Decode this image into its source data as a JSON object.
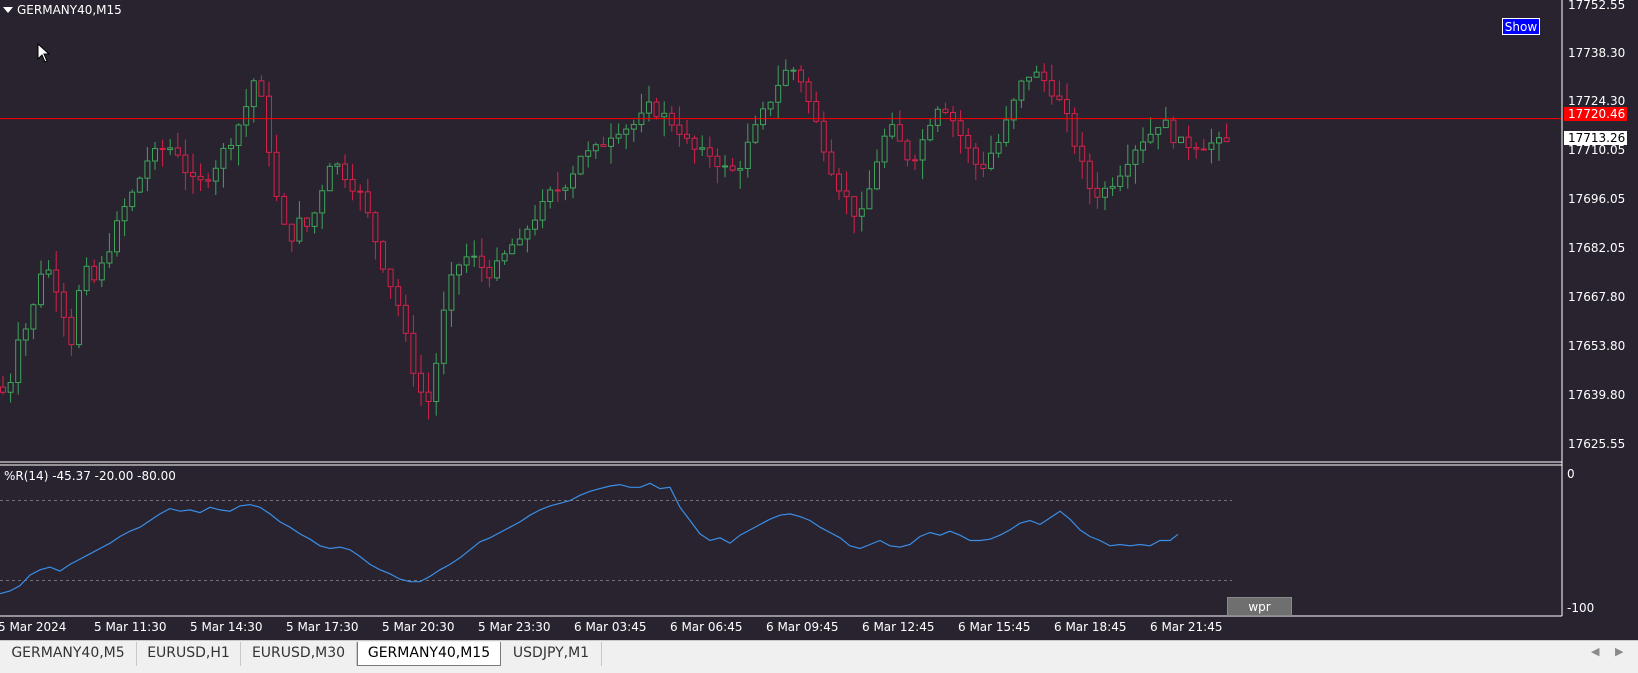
{
  "chart_window": {
    "title": "GERMANY40,M15",
    "show_button": "Show"
  },
  "price_axis": {
    "ticks": [
      "17752.55",
      "17738.30",
      "17724.30",
      "17710.05",
      "17696.05",
      "17682.05",
      "17667.80",
      "17653.80",
      "17639.80",
      "17625.55"
    ],
    "bid_tag": "17720.46",
    "last_tag": "17713.26"
  },
  "indicator": {
    "label": "%R(14) -45.37 -20.00 -80.00",
    "level_top": "0",
    "level_bottom": "-100",
    "button": "wpr"
  },
  "time_axis": {
    "ticks": [
      "5 Mar 2024",
      "5 Mar 11:30",
      "5 Mar 14:30",
      "5 Mar 17:30",
      "5 Mar 20:30",
      "5 Mar 23:30",
      "6 Mar 03:45",
      "6 Mar 06:45",
      "6 Mar 09:45",
      "6 Mar 12:45",
      "6 Mar 15:45",
      "6 Mar 18:45",
      "6 Mar 21:45"
    ]
  },
  "tabs": [
    {
      "label": "GERMANY40,M5",
      "active": false
    },
    {
      "label": "EURUSD,H1",
      "active": false
    },
    {
      "label": "EURUSD,M30",
      "active": false
    },
    {
      "label": "GERMANY40,M15",
      "active": true
    },
    {
      "label": "USDJPY,M1",
      "active": false
    }
  ],
  "colors": {
    "background": "#28232f",
    "bull": "#3fa35a",
    "bear": "#d6214a",
    "bid_line": "#ff0000",
    "wpr_line": "#3a8ee6"
  },
  "chart_data": {
    "type": "candlestick",
    "price_range": [
      17620,
      17755
    ],
    "bid": 17720.46,
    "last": 17713.26,
    "close_path": [
      [
        0,
        17641
      ],
      [
        6,
        17638
      ],
      [
        12,
        17645
      ],
      [
        20,
        17660
      ],
      [
        28,
        17658
      ],
      [
        36,
        17668
      ],
      [
        44,
        17680
      ],
      [
        52,
        17672
      ],
      [
        60,
        17670
      ],
      [
        70,
        17652
      ],
      [
        78,
        17668
      ],
      [
        86,
        17675
      ],
      [
        96,
        17672
      ],
      [
        106,
        17680
      ],
      [
        116,
        17688
      ],
      [
        126,
        17695
      ],
      [
        136,
        17700
      ],
      [
        146,
        17708
      ],
      [
        156,
        17710
      ],
      [
        166,
        17712
      ],
      [
        176,
        17712
      ],
      [
        186,
        17705
      ],
      [
        196,
        17700
      ],
      [
        206,
        17703
      ],
      [
        216,
        17707
      ],
      [
        226,
        17712
      ],
      [
        236,
        17717
      ],
      [
        246,
        17724
      ],
      [
        254,
        17732
      ],
      [
        262,
        17725
      ],
      [
        270,
        17710
      ],
      [
        280,
        17690
      ],
      [
        290,
        17685
      ],
      [
        300,
        17690
      ],
      [
        310,
        17688
      ],
      [
        320,
        17698
      ],
      [
        330,
        17708
      ],
      [
        340,
        17706
      ],
      [
        350,
        17702
      ],
      [
        360,
        17698
      ],
      [
        370,
        17690
      ],
      [
        380,
        17680
      ],
      [
        390,
        17672
      ],
      [
        400,
        17664
      ],
      [
        406,
        17655
      ],
      [
        412,
        17648
      ],
      [
        420,
        17640
      ],
      [
        428,
        17636
      ],
      [
        436,
        17648
      ],
      [
        444,
        17663
      ],
      [
        452,
        17673
      ],
      [
        460,
        17678
      ],
      [
        470,
        17680
      ],
      [
        480,
        17677
      ],
      [
        490,
        17675
      ],
      [
        500,
        17677
      ],
      [
        510,
        17683
      ],
      [
        520,
        17683
      ],
      [
        530,
        17690
      ],
      [
        540,
        17693
      ],
      [
        550,
        17698
      ],
      [
        560,
        17700
      ],
      [
        570,
        17703
      ],
      [
        580,
        17710
      ],
      [
        590,
        17710
      ],
      [
        600,
        17712
      ],
      [
        610,
        17716
      ],
      [
        620,
        17718
      ],
      [
        630,
        17718
      ],
      [
        640,
        17720
      ],
      [
        650,
        17724
      ],
      [
        660,
        17722
      ],
      [
        670,
        17720
      ],
      [
        680,
        17717
      ],
      [
        690,
        17712
      ],
      [
        700,
        17710
      ],
      [
        710,
        17710
      ],
      [
        720,
        17707
      ],
      [
        730,
        17704
      ],
      [
        740,
        17707
      ],
      [
        750,
        17714
      ],
      [
        760,
        17720
      ],
      [
        770,
        17726
      ],
      [
        780,
        17732
      ],
      [
        790,
        17736
      ],
      [
        800,
        17733
      ],
      [
        810,
        17724
      ],
      [
        820,
        17716
      ],
      [
        830,
        17707
      ],
      [
        840,
        17700
      ],
      [
        850,
        17695
      ],
      [
        860,
        17690
      ],
      [
        870,
        17700
      ],
      [
        880,
        17712
      ],
      [
        890,
        17718
      ],
      [
        900,
        17713
      ],
      [
        910,
        17708
      ],
      [
        920,
        17712
      ],
      [
        930,
        17720
      ],
      [
        940,
        17726
      ],
      [
        950,
        17722
      ],
      [
        960,
        17716
      ],
      [
        970,
        17710
      ],
      [
        980,
        17705
      ],
      [
        990,
        17710
      ],
      [
        1000,
        17714
      ],
      [
        1010,
        17722
      ],
      [
        1020,
        17730
      ],
      [
        1030,
        17734
      ],
      [
        1040,
        17733
      ],
      [
        1050,
        17730
      ],
      [
        1060,
        17725
      ],
      [
        1070,
        17718
      ],
      [
        1080,
        17708
      ],
      [
        1090,
        17700
      ],
      [
        1100,
        17698
      ],
      [
        1110,
        17701
      ],
      [
        1120,
        17705
      ],
      [
        1130,
        17710
      ],
      [
        1140,
        17714
      ],
      [
        1150,
        17716
      ],
      [
        1160,
        17720
      ],
      [
        1168,
        17718
      ],
      [
        1178,
        17713
      ]
    ],
    "wpr_path": [
      [
        0,
        -90
      ],
      [
        10,
        -88
      ],
      [
        20,
        -84
      ],
      [
        30,
        -76
      ],
      [
        40,
        -72
      ],
      [
        50,
        -70
      ],
      [
        60,
        -73
      ],
      [
        70,
        -68
      ],
      [
        80,
        -64
      ],
      [
        90,
        -60
      ],
      [
        100,
        -56
      ],
      [
        110,
        -52
      ],
      [
        120,
        -47
      ],
      [
        130,
        -43
      ],
      [
        140,
        -40
      ],
      [
        150,
        -35
      ],
      [
        160,
        -30
      ],
      [
        170,
        -26
      ],
      [
        180,
        -28
      ],
      [
        190,
        -27
      ],
      [
        200,
        -29
      ],
      [
        210,
        -25
      ],
      [
        220,
        -27
      ],
      [
        230,
        -28
      ],
      [
        240,
        -24
      ],
      [
        250,
        -23
      ],
      [
        260,
        -25
      ],
      [
        270,
        -30
      ],
      [
        280,
        -36
      ],
      [
        290,
        -40
      ],
      [
        300,
        -45
      ],
      [
        310,
        -49
      ],
      [
        320,
        -54
      ],
      [
        330,
        -56
      ],
      [
        340,
        -55
      ],
      [
        350,
        -57
      ],
      [
        360,
        -62
      ],
      [
        370,
        -68
      ],
      [
        380,
        -72
      ],
      [
        390,
        -75
      ],
      [
        400,
        -79
      ],
      [
        410,
        -81
      ],
      [
        420,
        -81
      ],
      [
        430,
        -77
      ],
      [
        440,
        -72
      ],
      [
        450,
        -68
      ],
      [
        460,
        -63
      ],
      [
        470,
        -57
      ],
      [
        480,
        -51
      ],
      [
        490,
        -48
      ],
      [
        500,
        -44
      ],
      [
        510,
        -40
      ],
      [
        520,
        -36
      ],
      [
        530,
        -31
      ],
      [
        540,
        -27
      ],
      [
        550,
        -24
      ],
      [
        560,
        -22
      ],
      [
        570,
        -20
      ],
      [
        580,
        -16
      ],
      [
        590,
        -13
      ],
      [
        600,
        -11
      ],
      [
        610,
        -9
      ],
      [
        620,
        -8
      ],
      [
        630,
        -10
      ],
      [
        640,
        -10
      ],
      [
        650,
        -7
      ],
      [
        660,
        -11
      ],
      [
        670,
        -10
      ],
      [
        680,
        -25
      ],
      [
        690,
        -35
      ],
      [
        700,
        -45
      ],
      [
        710,
        -50
      ],
      [
        720,
        -48
      ],
      [
        730,
        -52
      ],
      [
        740,
        -46
      ],
      [
        750,
        -42
      ],
      [
        760,
        -38
      ],
      [
        770,
        -34
      ],
      [
        780,
        -31
      ],
      [
        790,
        -30
      ],
      [
        800,
        -32
      ],
      [
        810,
        -35
      ],
      [
        820,
        -40
      ],
      [
        830,
        -44
      ],
      [
        840,
        -48
      ],
      [
        850,
        -54
      ],
      [
        860,
        -56
      ],
      [
        870,
        -53
      ],
      [
        880,
        -50
      ],
      [
        890,
        -54
      ],
      [
        900,
        -55
      ],
      [
        910,
        -53
      ],
      [
        920,
        -47
      ],
      [
        930,
        -44
      ],
      [
        940,
        -46
      ],
      [
        950,
        -43
      ],
      [
        960,
        -46
      ],
      [
        970,
        -50
      ],
      [
        980,
        -50
      ],
      [
        990,
        -49
      ],
      [
        1000,
        -46
      ],
      [
        1010,
        -42
      ],
      [
        1020,
        -37
      ],
      [
        1030,
        -35
      ],
      [
        1040,
        -38
      ],
      [
        1050,
        -33
      ],
      [
        1060,
        -28
      ],
      [
        1070,
        -34
      ],
      [
        1080,
        -42
      ],
      [
        1090,
        -47
      ],
      [
        1100,
        -50
      ],
      [
        1110,
        -54
      ],
      [
        1120,
        -53
      ],
      [
        1130,
        -54
      ],
      [
        1140,
        -53
      ],
      [
        1150,
        -54
      ],
      [
        1160,
        -50
      ],
      [
        1170,
        -50
      ],
      [
        1178,
        -45.37
      ]
    ],
    "wpr_levels": [
      -20,
      -80
    ],
    "wpr_range": [
      -100,
      0
    ]
  }
}
